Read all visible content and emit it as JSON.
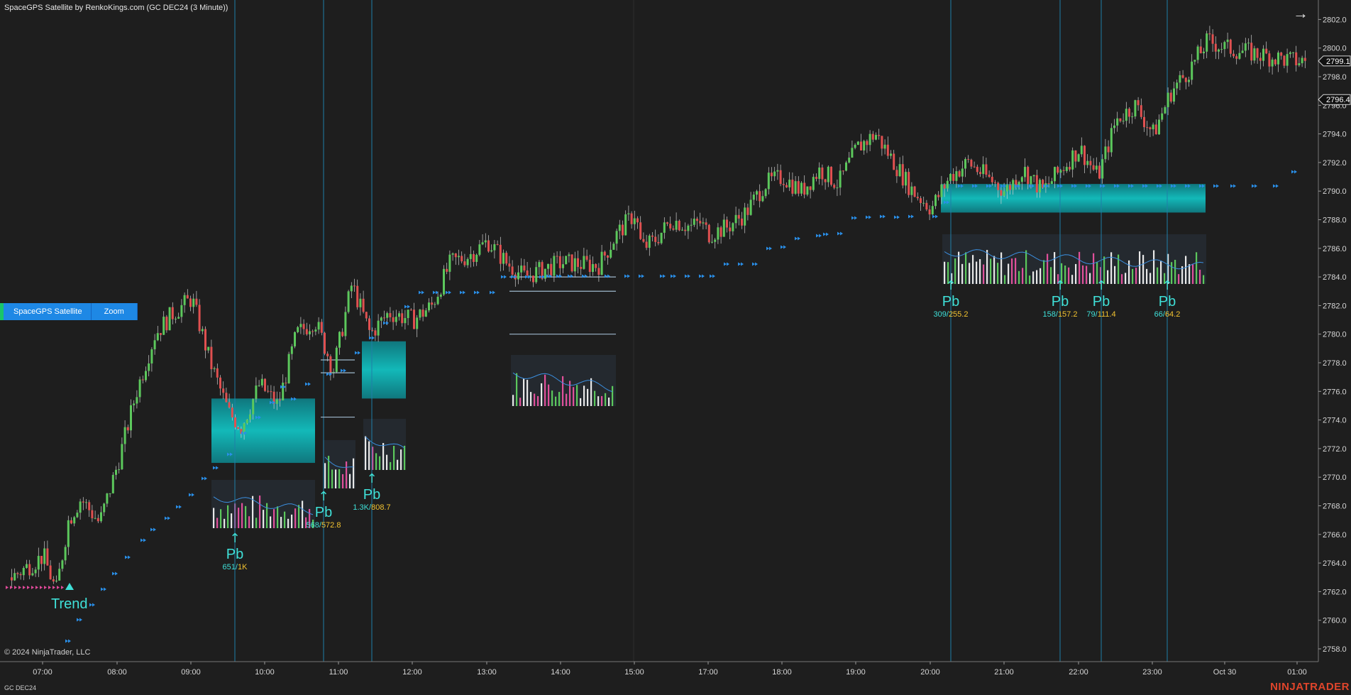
{
  "title": "SpaceGPS Satellite by RenkoKings.com (GC DEC24 (3 Minute))",
  "copyright": "© 2024 NinjaTrader, LLC",
  "instrument": "GC DEC24",
  "brand": "NINJATRADER",
  "toolbar": {
    "satellite_label": "SpaceGPS Satellite",
    "zoom_label": "Zoom",
    "nav_icon": "arrow-right-icon"
  },
  "colors": {
    "background": "#1e1e1e",
    "up": "#5cc85c",
    "down": "#e05050",
    "zone": "#0fb5b5",
    "signal": "#2a8fe8",
    "vline": "#1f7fa8",
    "label_cyan": "#3fe0d8",
    "label_yellow": "#f2c230",
    "brand": "#e0452b"
  },
  "chart_data": {
    "type": "candlestick",
    "ylim": [
      2757.2,
      2803.4
    ],
    "yticks": [
      "2758.0",
      "2760.0",
      "2762.0",
      "2764.0",
      "2766.0",
      "2768.0",
      "2770.0",
      "2772.0",
      "2774.0",
      "2776.0",
      "2778.0",
      "2780.0",
      "2782.0",
      "2784.0",
      "2786.0",
      "2788.0",
      "2790.0",
      "2792.0",
      "2794.0",
      "2796.0",
      "2798.0",
      "2800.0",
      "2802.0"
    ],
    "xticks": [
      "07:00",
      "08:00",
      "09:00",
      "10:00",
      "11:00",
      "12:00",
      "13:00",
      "14:00",
      "15:00",
      "17:00",
      "18:00",
      "19:00",
      "20:00",
      "21:00",
      "22:00",
      "23:00",
      "Oct 30",
      "01:00"
    ],
    "price_markers": [
      {
        "value": "2799.1"
      },
      {
        "value": "2796.4"
      }
    ],
    "close_path": [
      {
        "t": "06:45",
        "p": 2763.0
      },
      {
        "t": "07:00",
        "p": 2764.5
      },
      {
        "t": "07:10",
        "p": 2762.0
      },
      {
        "t": "07:20",
        "p": 2767.0
      },
      {
        "t": "07:30",
        "p": 2768.5
      },
      {
        "t": "07:45",
        "p": 2766.8
      },
      {
        "t": "08:00",
        "p": 2771.0
      },
      {
        "t": "08:15",
        "p": 2776.0
      },
      {
        "t": "08:30",
        "p": 2780.0
      },
      {
        "t": "08:45",
        "p": 2781.5
      },
      {
        "t": "09:00",
        "p": 2782.5
      },
      {
        "t": "09:15",
        "p": 2778.0
      },
      {
        "t": "09:30",
        "p": 2774.5
      },
      {
        "t": "09:40",
        "p": 2773.5
      },
      {
        "t": "09:55",
        "p": 2776.5
      },
      {
        "t": "10:10",
        "p": 2775.0
      },
      {
        "t": "10:25",
        "p": 2780.0
      },
      {
        "t": "10:40",
        "p": 2781.0
      },
      {
        "t": "10:55",
        "p": 2777.5
      },
      {
        "t": "11:10",
        "p": 2783.5
      },
      {
        "t": "11:25",
        "p": 2780.0
      },
      {
        "t": "11:40",
        "p": 2781.5
      },
      {
        "t": "12:00",
        "p": 2781.0
      },
      {
        "t": "12:15",
        "p": 2782.0
      },
      {
        "t": "12:30",
        "p": 2785.0
      },
      {
        "t": "12:45",
        "p": 2785.5
      },
      {
        "t": "13:00",
        "p": 2786.5
      },
      {
        "t": "13:15",
        "p": 2785.0
      },
      {
        "t": "13:30",
        "p": 2784.0
      },
      {
        "t": "13:45",
        "p": 2784.5
      },
      {
        "t": "14:00",
        "p": 2785.0
      },
      {
        "t": "14:30",
        "p": 2784.8
      },
      {
        "t": "14:45",
        "p": 2787.0
      },
      {
        "t": "15:00",
        "p": 2788.5
      },
      {
        "t": "15:10",
        "p": 2786.0
      },
      {
        "t": "15:30",
        "p": 2786.5
      },
      {
        "t": "16:00",
        "p": 2788.0
      },
      {
        "t": "16:30",
        "p": 2787.5
      },
      {
        "t": "16:45",
        "p": 2787.8
      },
      {
        "t": "17:00",
        "p": 2787.0
      },
      {
        "t": "17:15",
        "p": 2787.5
      },
      {
        "t": "17:30",
        "p": 2788.5
      },
      {
        "t": "17:45",
        "p": 2790.5
      },
      {
        "t": "18:00",
        "p": 2791.0
      },
      {
        "t": "18:15",
        "p": 2790.0
      },
      {
        "t": "18:30",
        "p": 2791.5
      },
      {
        "t": "18:45",
        "p": 2790.5
      },
      {
        "t": "19:00",
        "p": 2793.0
      },
      {
        "t": "19:15",
        "p": 2794.0
      },
      {
        "t": "19:30",
        "p": 2792.0
      },
      {
        "t": "19:45",
        "p": 2790.0
      },
      {
        "t": "20:00",
        "p": 2788.8
      },
      {
        "t": "20:15",
        "p": 2791.0
      },
      {
        "t": "20:30",
        "p": 2792.0
      },
      {
        "t": "20:45",
        "p": 2791.0
      },
      {
        "t": "21:00",
        "p": 2790.0
      },
      {
        "t": "21:15",
        "p": 2791.5
      },
      {
        "t": "21:30",
        "p": 2790.0
      },
      {
        "t": "21:45",
        "p": 2791.5
      },
      {
        "t": "22:00",
        "p": 2793.0
      },
      {
        "t": "22:15",
        "p": 2791.0
      },
      {
        "t": "22:30",
        "p": 2795.0
      },
      {
        "t": "22:45",
        "p": 2796.0
      },
      {
        "t": "23:00",
        "p": 2794.0
      },
      {
        "t": "23:15",
        "p": 2797.0
      },
      {
        "t": "23:30",
        "p": 2798.5
      },
      {
        "t": "23:45",
        "p": 2800.5
      },
      {
        "t": "Oct 30",
        "p": 2800.0
      },
      {
        "t": "01:00",
        "p": 2799.1
      }
    ],
    "trend_marker": {
      "label": "Trend"
    },
    "pullback_signals": [
      {
        "label": "Pb",
        "buy": "651",
        "sell": "1K"
      },
      {
        "label": "Pb",
        "buy": "568",
        "sell": "572.8"
      },
      {
        "label": "Pb",
        "buy": "1.3K",
        "sell": "808.7"
      },
      {
        "label": "Pb",
        "buy": "309",
        "sell": "255.2"
      },
      {
        "label": "Pb",
        "buy": "158",
        "sell": "157.2"
      },
      {
        "label": "Pb",
        "buy": "79",
        "sell": "111.4"
      },
      {
        "label": "Pb",
        "buy": "66",
        "sell": "64.2"
      }
    ],
    "zones": [
      {
        "from": 2771.0,
        "to": 2775.5
      },
      {
        "from": 2775.5,
        "to": 2779.5
      },
      {
        "from": 2788.5,
        "to": 2790.5
      }
    ]
  }
}
